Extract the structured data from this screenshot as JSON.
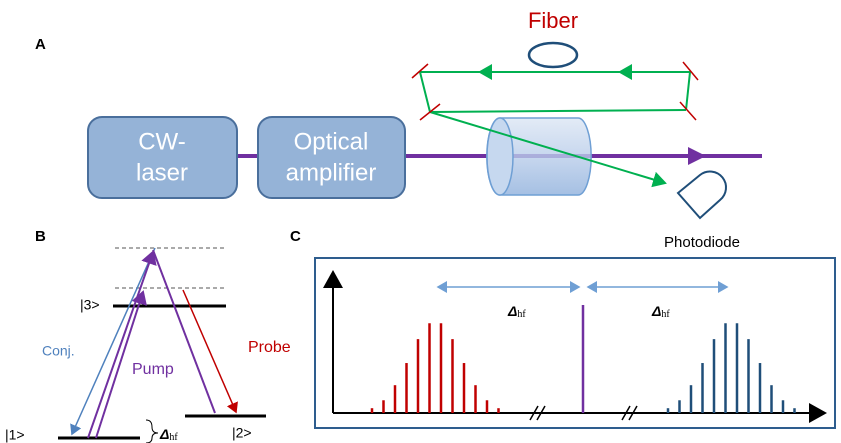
{
  "panels": {
    "a": {
      "label": "A",
      "fiber": "Fiber",
      "cw_laser": [
        "CW-",
        "laser"
      ],
      "amplifier": [
        "Optical",
        "amplifier"
      ],
      "photodiode": "Photodiode"
    },
    "b": {
      "label": "B",
      "level_3": "|3>",
      "level_1": "|1>",
      "level_2": "|2>",
      "conj": "Conj.",
      "pump": "Pump",
      "probe": "Probe",
      "delta": {
        "symbol": "Δ",
        "sub": "hf"
      }
    },
    "c": {
      "label": "C",
      "deltas": [
        {
          "symbol": "Δ",
          "sub": "hf"
        },
        {
          "symbol": "Δ",
          "sub": "hf"
        }
      ]
    }
  }
}
